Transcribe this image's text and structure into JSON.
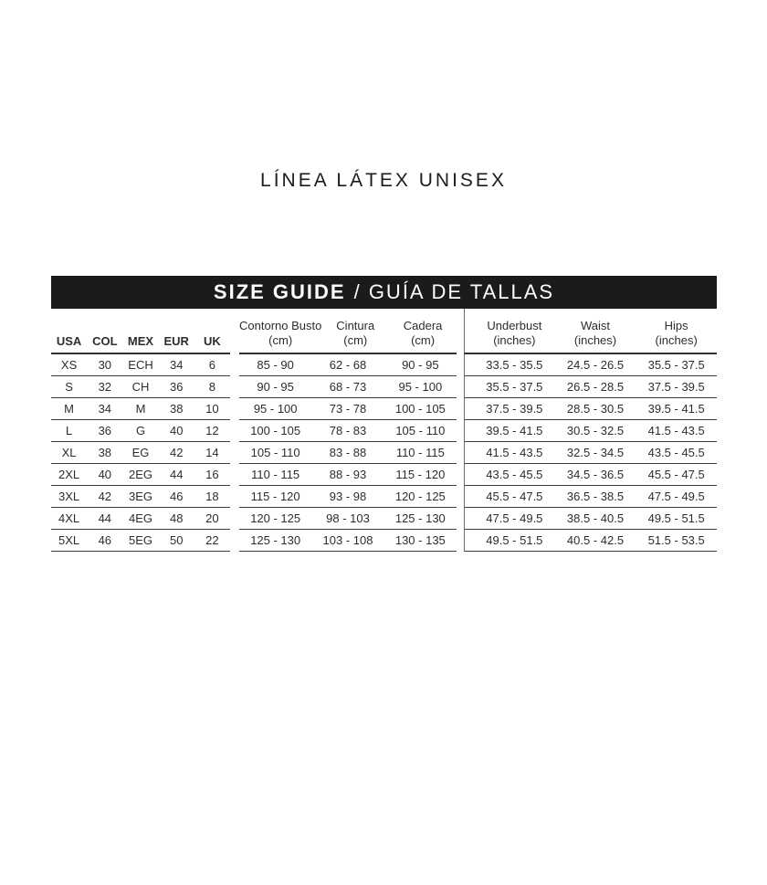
{
  "page_title": "LÍNEA LÁTEX UNISEX",
  "banner": {
    "primary": "SIZE GUIDE",
    "secondary": "/ GUÍA DE TALLAS"
  },
  "colors": {
    "banner_bg": "#1b1b1d",
    "banner_text": "#ffffff",
    "rule_dark": "#303030",
    "rule_row": "#3d3d3d",
    "divider_gray": "#6b6b6b"
  },
  "columns": {
    "sizes": [
      "USA",
      "COL",
      "MEX",
      "EUR",
      "UK"
    ],
    "cm": [
      {
        "label": "Contorno Busto",
        "unit": "(cm)"
      },
      {
        "label": "Cintura",
        "unit": "(cm)"
      },
      {
        "label": "Cadera",
        "unit": "(cm)"
      }
    ],
    "inches": [
      {
        "label": "Underbust",
        "unit": "(inches)"
      },
      {
        "label": "Waist",
        "unit": "(inches)"
      },
      {
        "label": "Hips",
        "unit": "(inches)"
      }
    ]
  },
  "rows": [
    {
      "sizes": [
        "XS",
        "30",
        "ECH",
        "34",
        "6"
      ],
      "cm": [
        "85 - 90",
        "62 - 68",
        "90 - 95"
      ],
      "inches": [
        "33.5 - 35.5",
        "24.5 - 26.5",
        "35.5 - 37.5"
      ]
    },
    {
      "sizes": [
        "S",
        "32",
        "CH",
        "36",
        "8"
      ],
      "cm": [
        "90 - 95",
        "68 - 73",
        "95 - 100"
      ],
      "inches": [
        "35.5 - 37.5",
        "26.5 - 28.5",
        "37.5 - 39.5"
      ]
    },
    {
      "sizes": [
        "M",
        "34",
        "M",
        "38",
        "10"
      ],
      "cm": [
        "95 - 100",
        "73 - 78",
        "100 - 105"
      ],
      "inches": [
        "37.5 - 39.5",
        "28.5 - 30.5",
        "39.5 - 41.5"
      ]
    },
    {
      "sizes": [
        "L",
        "36",
        "G",
        "40",
        "12"
      ],
      "cm": [
        "100 - 105",
        "78 - 83",
        "105 - 110"
      ],
      "inches": [
        "39.5 - 41.5",
        "30.5 - 32.5",
        "41.5 - 43.5"
      ]
    },
    {
      "sizes": [
        "XL",
        "38",
        "EG",
        "42",
        "14"
      ],
      "cm": [
        "105 - 110",
        "83 - 88",
        "110 - 115"
      ],
      "inches": [
        "41.5 - 43.5",
        "32.5 - 34.5",
        "43.5 - 45.5"
      ]
    },
    {
      "sizes": [
        "2XL",
        "40",
        "2EG",
        "44",
        "16"
      ],
      "cm": [
        "110 - 115",
        "88 - 93",
        "115 - 120"
      ],
      "inches": [
        "43.5 - 45.5",
        "34.5 - 36.5",
        "45.5 - 47.5"
      ]
    },
    {
      "sizes": [
        "3XL",
        "42",
        "3EG",
        "46",
        "18"
      ],
      "cm": [
        "115 - 120",
        "93 - 98",
        "120 - 125"
      ],
      "inches": [
        "45.5 - 47.5",
        "36.5 - 38.5",
        "47.5 - 49.5"
      ]
    },
    {
      "sizes": [
        "4XL",
        "44",
        "4EG",
        "48",
        "20"
      ],
      "cm": [
        "120 - 125",
        "98 - 103",
        "125 - 130"
      ],
      "inches": [
        "47.5 - 49.5",
        "38.5 - 40.5",
        "49.5 - 51.5"
      ]
    },
    {
      "sizes": [
        "5XL",
        "46",
        "5EG",
        "50",
        "22"
      ],
      "cm": [
        "125 - 130",
        "103 - 108",
        "130 - 135"
      ],
      "inches": [
        "49.5 - 51.5",
        "40.5 - 42.5",
        "51.5 - 53.5"
      ]
    }
  ]
}
